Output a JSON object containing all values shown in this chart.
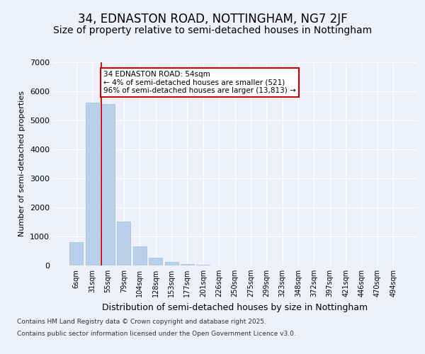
{
  "title": "34, EDNASTON ROAD, NOTTINGHAM, NG7 2JF",
  "subtitle": "Size of property relative to semi-detached houses in Nottingham",
  "xlabel": "Distribution of semi-detached houses by size in Nottingham",
  "ylabel": "Number of semi-detached properties",
  "categories": [
    "6sqm",
    "31sqm",
    "55sqm",
    "79sqm",
    "104sqm",
    "128sqm",
    "153sqm",
    "177sqm",
    "201sqm",
    "226sqm",
    "250sqm",
    "275sqm",
    "299sqm",
    "323sqm",
    "348sqm",
    "372sqm",
    "397sqm",
    "421sqm",
    "446sqm",
    "470sqm",
    "494sqm"
  ],
  "values": [
    800,
    5600,
    5550,
    1500,
    660,
    280,
    130,
    60,
    30,
    0,
    0,
    0,
    0,
    0,
    0,
    0,
    0,
    0,
    0,
    0,
    0
  ],
  "bar_color": "#b8d0ea",
  "bar_edge_color": "#9bbdd8",
  "vline_index": 2,
  "vline_color": "#cc0000",
  "annotation_title": "34 EDNASTON ROAD: 54sqm",
  "annotation_line1": "← 4% of semi-detached houses are smaller (521)",
  "annotation_line2": "96% of semi-detached houses are larger (13,813) →",
  "annotation_box_color": "#cc0000",
  "ylim": [
    0,
    7000
  ],
  "yticks": [
    0,
    1000,
    2000,
    3000,
    4000,
    5000,
    6000,
    7000
  ],
  "bg_color": "#eef1fb",
  "plot_bg_color": "#eef1fb",
  "grid_color": "#ffffff",
  "footer1": "Contains HM Land Registry data © Crown copyright and database right 2025.",
  "footer2": "Contains public sector information licensed under the Open Government Licence v3.0.",
  "title_fontsize": 12,
  "subtitle_fontsize": 10,
  "ylabel_fontsize": 8,
  "xlabel_fontsize": 9,
  "footer_fontsize": 6.5
}
